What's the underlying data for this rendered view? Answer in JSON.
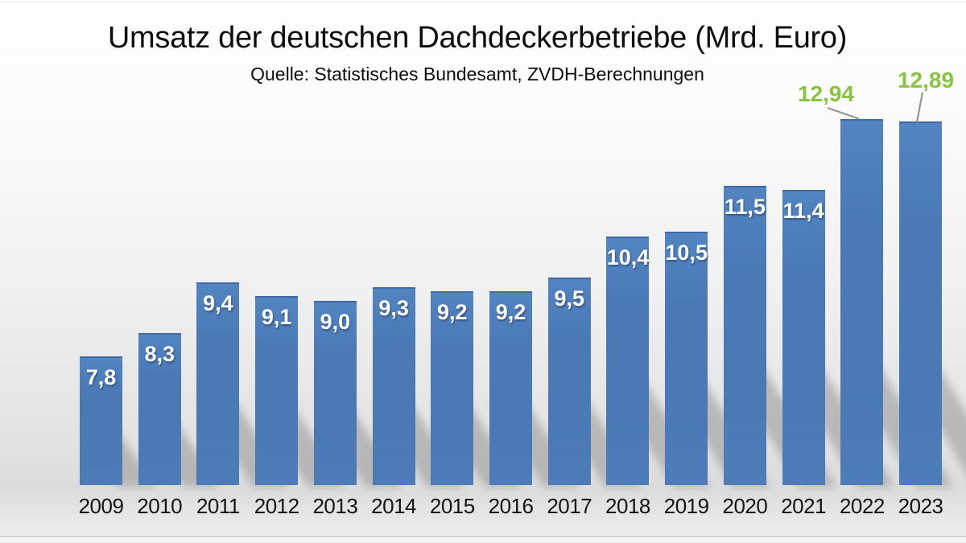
{
  "title": "Umsatz der deutschen Dachdeckerbetriebe (Mrd. Euro)",
  "subtitle": "Quelle: Statistisches Bundesamt, ZVDH-Berechnungen",
  "colors": {
    "bar_blue": "#4a79b6",
    "inside_label_white": "#ffffff",
    "highlight_green": "#89c43f",
    "leader_line_gray": "#8f8f8f",
    "year_label_black": "#141414"
  },
  "chart_data": {
    "type": "bar",
    "title": "Umsatz der deutschen Dachdeckerbetriebe (Mrd. Euro)",
    "subtitle": "Quelle: Statistisches Bundesamt, ZVDH-Berechnungen",
    "categories": [
      "2009",
      "2010",
      "2011",
      "2012",
      "2013",
      "2014",
      "2015",
      "2016",
      "2017",
      "2018",
      "2019",
      "2020",
      "2021",
      "2022",
      "2023"
    ],
    "values": [
      7.8,
      8.3,
      9.4,
      9.1,
      9.0,
      9.3,
      9.2,
      9.2,
      9.5,
      10.4,
      10.5,
      11.5,
      11.4,
      12.94,
      12.89
    ],
    "labels": [
      "7,8",
      "8,3",
      "9,4",
      "9,1",
      "9,0",
      "9,3",
      "9,2",
      "9,2",
      "9,5",
      "10,4",
      "10,5",
      "11,5",
      "11,4",
      "12,94",
      "12,89"
    ],
    "label_position": [
      "inside",
      "inside",
      "inside",
      "inside",
      "inside",
      "inside",
      "inside",
      "inside",
      "inside",
      "inside",
      "inside",
      "inside",
      "inside",
      "above-green",
      "above-green"
    ],
    "xlabel": "",
    "ylabel": "",
    "unit": "Mrd. Euro",
    "decimal_separator": ",",
    "axis_visible": false,
    "grid": false,
    "legend": false,
    "baseline_value": 5,
    "highlighted_callouts": [
      {
        "category": "2022",
        "label": "12,94"
      },
      {
        "category": "2023",
        "label": "12,89"
      }
    ]
  }
}
